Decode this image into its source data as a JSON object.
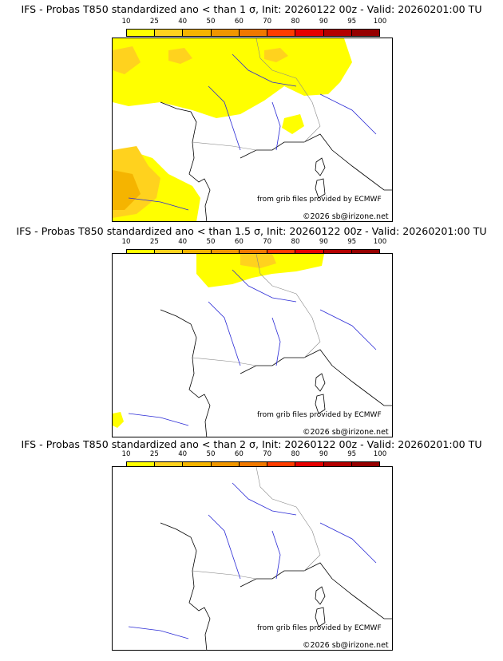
{
  "colorbar": {
    "ticks": [
      "10",
      "25",
      "40",
      "50",
      "60",
      "70",
      "80",
      "90",
      "95",
      "100"
    ],
    "colors": [
      "#ffff00",
      "#ffd21e",
      "#f5b400",
      "#f09600",
      "#f07800",
      "#ff3c00",
      "#e60000",
      "#b40000",
      "#960000"
    ]
  },
  "panels": [
    {
      "title": "IFS - Probas T850  standardized ano < than 1 σ, Init: 20260122 00z - Valid: 20260201:00 TU"
    },
    {
      "title": "IFS - Probas T850  standardized ano < than 1.5 σ, Init: 20260122 00z - Valid: 20260201:00 TU"
    },
    {
      "title": "IFS - Probas T850  standardized ano < than 2 σ, Init: 20260122 00z - Valid: 20260201:00 TU"
    }
  ],
  "credit": "from grib files provided by ECMWF",
  "copyright": "©2026 sb@irizone.net"
}
